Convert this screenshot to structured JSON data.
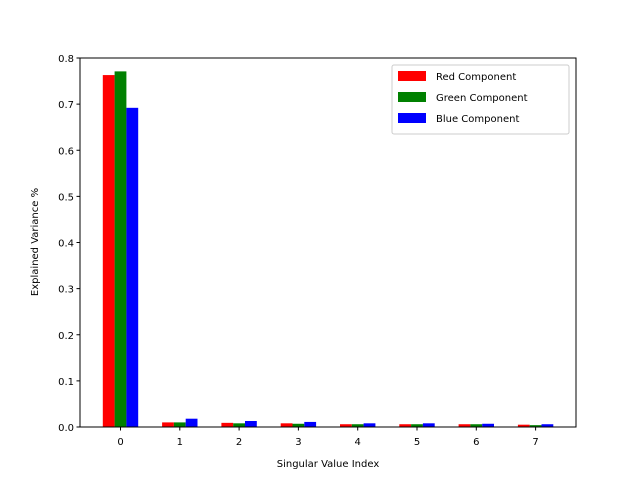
{
  "chart_data": {
    "type": "bar",
    "title": "",
    "xlabel": "Singular Value Index",
    "ylabel": "Explained Variance %",
    "categories": [
      "0",
      "1",
      "2",
      "3",
      "4",
      "5",
      "6",
      "7"
    ],
    "ylim": [
      0,
      0.8
    ],
    "yticks": [
      "0.0",
      "0.1",
      "0.2",
      "0.3",
      "0.4",
      "0.5",
      "0.6",
      "0.7",
      "0.8"
    ],
    "legend_position": "top-right",
    "grid": false,
    "series": [
      {
        "name": "Red Component",
        "color": "#ff0000",
        "values": [
          0.763,
          0.01,
          0.009,
          0.008,
          0.006,
          0.006,
          0.006,
          0.005
        ]
      },
      {
        "name": "Green Component",
        "color": "#008000",
        "values": [
          0.771,
          0.01,
          0.008,
          0.007,
          0.006,
          0.006,
          0.006,
          0.004
        ]
      },
      {
        "name": "Blue Component",
        "color": "#0000ff",
        "values": [
          0.692,
          0.018,
          0.013,
          0.011,
          0.008,
          0.008,
          0.007,
          0.006
        ]
      }
    ]
  }
}
